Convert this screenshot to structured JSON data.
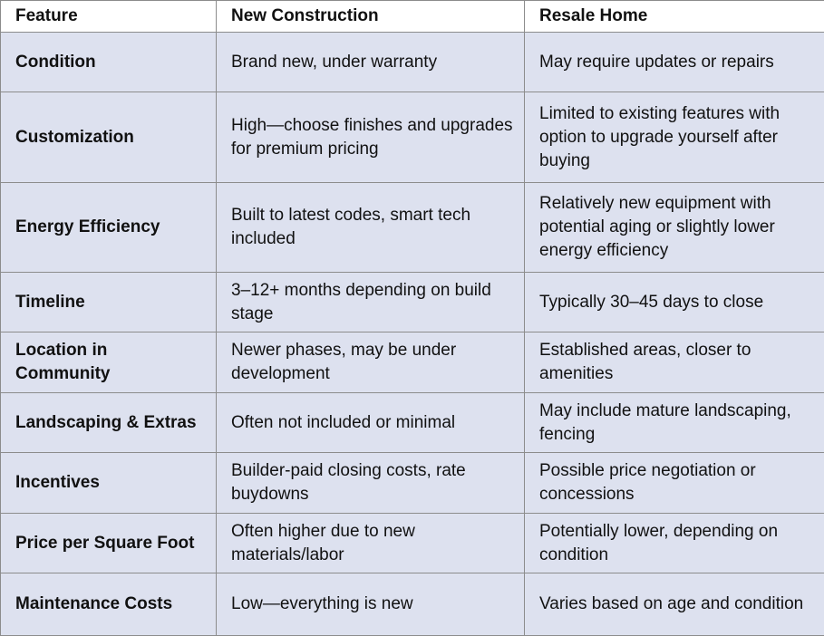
{
  "headers": {
    "feature": "Feature",
    "new_construction": "New Construction",
    "resale_home": "Resale Home"
  },
  "rows": [
    {
      "feature": "Condition",
      "new_construction": "Brand new, under warranty",
      "resale_home": "May require updates or repairs"
    },
    {
      "feature": "Customization",
      "new_construction": "High—choose finishes and upgrades for premium pricing",
      "resale_home": "Limited to existing features with option to upgrade yourself after buying"
    },
    {
      "feature": "Energy Efficiency",
      "new_construction": "Built to latest codes, smart tech included",
      "resale_home": "Relatively new equipment with potential aging or slightly lower energy efficiency"
    },
    {
      "feature": "Timeline",
      "new_construction": "3–12+ months depending on build stage",
      "resale_home": "Typically 30–45 days to close"
    },
    {
      "feature": "Location in Community",
      "new_construction": "Newer phases, may be under development",
      "resale_home": "Established areas, closer to amenities"
    },
    {
      "feature": "Landscaping & Extras",
      "new_construction": "Often not included or minimal",
      "resale_home": "May include mature landscaping, fencing"
    },
    {
      "feature": "Incentives",
      "new_construction": "Builder-paid closing costs, rate buydowns",
      "resale_home": "Possible price negotiation or concessions"
    },
    {
      "feature": "Price per Square Foot",
      "new_construction": "Often higher due to new materials/labor",
      "resale_home": "Potentially lower, depending on condition"
    },
    {
      "feature": "Maintenance Costs",
      "new_construction": "Low—everything is new",
      "resale_home": "Varies based on age and condition"
    }
  ]
}
